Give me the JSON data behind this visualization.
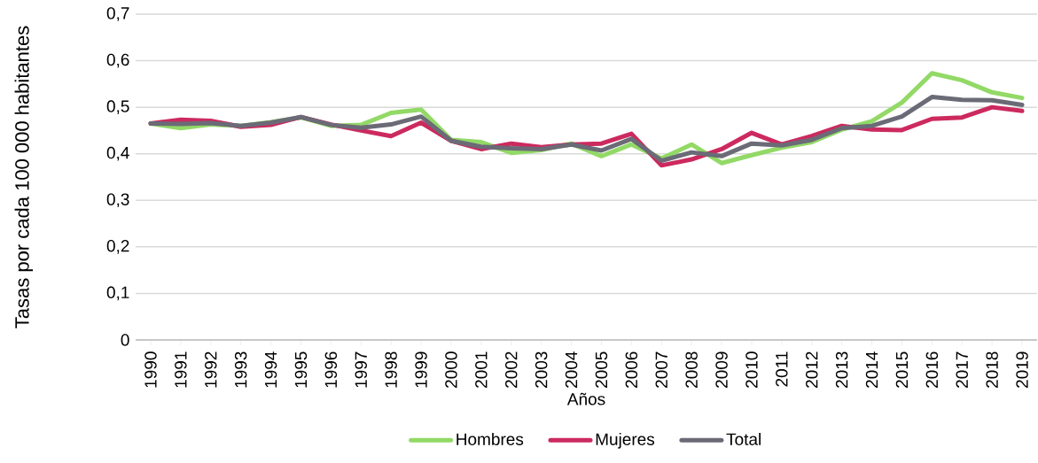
{
  "chart_data": {
    "type": "line",
    "xlabel": "Años",
    "ylabel": "Tasas por cada 100 000 habitantes",
    "categories": [
      "1990",
      "1991",
      "1992",
      "1993",
      "1994",
      "1995",
      "1996",
      "1997",
      "1998",
      "1999",
      "2000",
      "2001",
      "2002",
      "2003",
      "2004",
      "2005",
      "2006",
      "2007",
      "2008",
      "2009",
      "2010",
      "2011",
      "2012",
      "2013",
      "2014",
      "2015",
      "2016",
      "2017",
      "2018",
      "2019"
    ],
    "series": [
      {
        "name": "Hombres",
        "color": "#92d966",
        "values": [
          0.465,
          0.455,
          0.463,
          0.46,
          0.468,
          0.478,
          0.46,
          0.462,
          0.488,
          0.495,
          0.43,
          0.425,
          0.402,
          0.408,
          0.422,
          0.395,
          0.42,
          0.39,
          0.42,
          0.38,
          0.397,
          0.413,
          0.425,
          0.452,
          0.47,
          0.51,
          0.573,
          0.558,
          0.532,
          0.52
        ]
      },
      {
        "name": "Mujeres",
        "color": "#cc2a5f",
        "values": [
          0.465,
          0.473,
          0.471,
          0.458,
          0.462,
          0.479,
          0.463,
          0.45,
          0.438,
          0.467,
          0.428,
          0.41,
          0.422,
          0.414,
          0.42,
          0.422,
          0.443,
          0.375,
          0.388,
          0.41,
          0.445,
          0.42,
          0.438,
          0.46,
          0.452,
          0.451,
          0.475,
          0.478,
          0.5,
          0.492
        ]
      },
      {
        "name": "Total",
        "color": "#6b6b77",
        "values": [
          0.465,
          0.464,
          0.466,
          0.46,
          0.467,
          0.479,
          0.462,
          0.456,
          0.463,
          0.48,
          0.428,
          0.415,
          0.412,
          0.41,
          0.42,
          0.407,
          0.432,
          0.385,
          0.403,
          0.395,
          0.422,
          0.418,
          0.43,
          0.455,
          0.46,
          0.48,
          0.522,
          0.516,
          0.515,
          0.505
        ]
      }
    ],
    "ylim": [
      0,
      0.7
    ],
    "yticks": [
      {
        "value": 0,
        "label": "0"
      },
      {
        "value": 0.1,
        "label": "0,1"
      },
      {
        "value": 0.2,
        "label": "0,2"
      },
      {
        "value": 0.3,
        "label": "0,3"
      },
      {
        "value": 0.4,
        "label": "0,4"
      },
      {
        "value": 0.5,
        "label": "0,5"
      },
      {
        "value": 0.6,
        "label": "0,6"
      },
      {
        "value": 0.7,
        "label": "0,7"
      }
    ],
    "grid": "y",
    "legend": "bottom",
    "marker": "none",
    "line_style": "solid"
  }
}
